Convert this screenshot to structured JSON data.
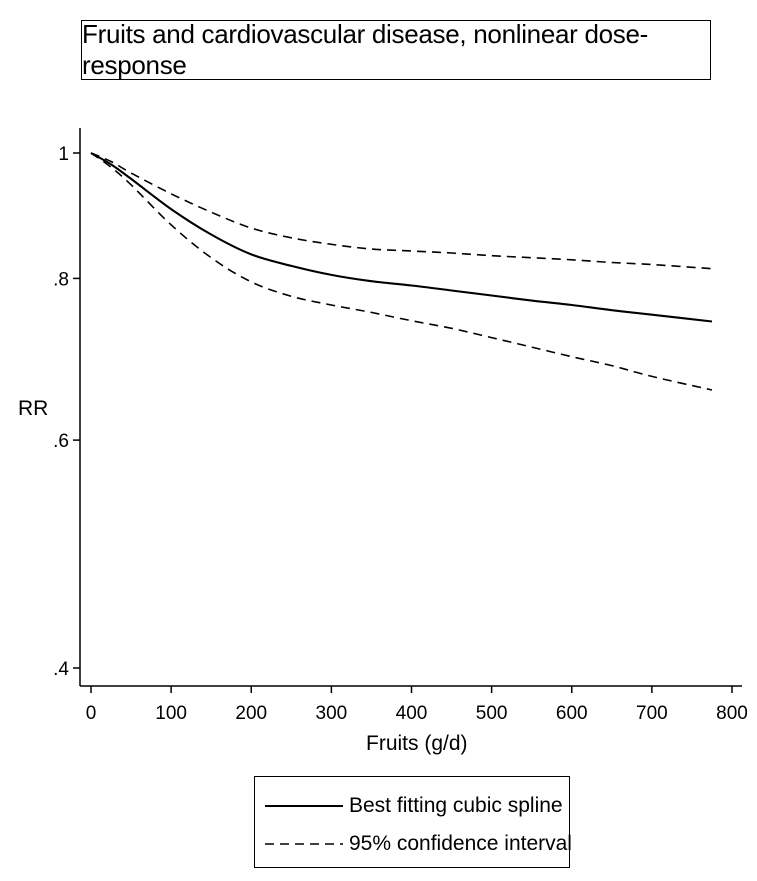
{
  "chart_data": {
    "type": "line",
    "title": "Fruits and cardiovascular disease, nonlinear dose-response",
    "xlabel": "Fruits (g/d)",
    "ylabel": "RR",
    "xlim": [
      0,
      800
    ],
    "ylim": [
      0.4,
      1.0
    ],
    "yscale": "log",
    "xticks": [
      0,
      100,
      200,
      300,
      400,
      500,
      600,
      700,
      800
    ],
    "xtick_labels": [
      "0",
      "100",
      "200",
      "300",
      "400",
      "500",
      "600",
      "700",
      "800"
    ],
    "yticks": [
      0.4,
      0.6,
      0.8,
      1.0
    ],
    "ytick_labels": [
      ".4",
      ".6",
      ".8",
      "1"
    ],
    "grid": false,
    "legend_position": "bottom",
    "x": [
      0,
      25,
      50,
      100,
      150,
      200,
      250,
      300,
      350,
      400,
      450,
      500,
      550,
      600,
      650,
      700,
      775
    ],
    "series": [
      {
        "name": "Best fitting cubic spline",
        "style": "solid",
        "values": [
          1.0,
          0.98,
          0.955,
          0.905,
          0.865,
          0.835,
          0.818,
          0.805,
          0.796,
          0.79,
          0.783,
          0.776,
          0.769,
          0.763,
          0.756,
          0.75,
          0.741
        ]
      },
      {
        "name": "95% confidence interval",
        "style": "dashed",
        "values": [
          1.0,
          0.985,
          0.965,
          0.93,
          0.9,
          0.875,
          0.86,
          0.85,
          0.843,
          0.84,
          0.837,
          0.833,
          0.83,
          0.827,
          0.823,
          0.82,
          0.814
        ]
      },
      {
        "name": "95% confidence interval",
        "style": "dashed",
        "legend": false,
        "values": [
          1.0,
          0.975,
          0.945,
          0.88,
          0.83,
          0.795,
          0.775,
          0.763,
          0.753,
          0.742,
          0.732,
          0.72,
          0.708,
          0.696,
          0.685,
          0.672,
          0.656
        ]
      }
    ]
  }
}
